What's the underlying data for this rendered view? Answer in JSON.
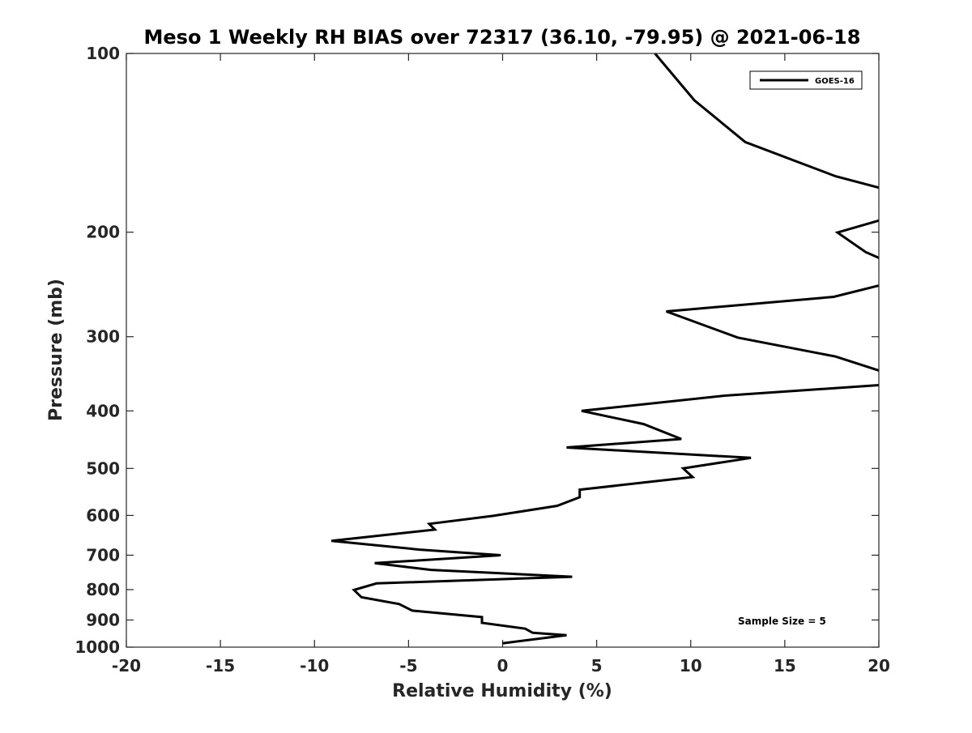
{
  "chart_data": {
    "type": "line",
    "title": "Meso 1 Weekly RH BIAS over 72317 (36.10, -79.95) @ 2021-06-18",
    "xlabel": "Relative Humidity (%)",
    "ylabel": "Pressure (mb)",
    "xlim": [
      -20,
      20
    ],
    "ylim": [
      100,
      1000
    ],
    "y_scale": "log",
    "y_reversed": true,
    "x_ticks": [
      -20,
      -15,
      -10,
      -5,
      0,
      5,
      10,
      15,
      20
    ],
    "x_tick_labels": [
      "-20",
      "-15",
      "-10",
      "-5",
      "0",
      "5",
      "10",
      "15",
      "20"
    ],
    "y_ticks": [
      100,
      200,
      300,
      400,
      500,
      600,
      700,
      800,
      900,
      1000
    ],
    "y_tick_labels": [
      "100",
      "200",
      "300",
      "400",
      "500",
      "600",
      "700",
      "800",
      "900",
      "1000"
    ],
    "grid": false,
    "legend_position": "top-right",
    "annotation": "Sample Size = 5",
    "series": [
      {
        "name": "GOES-16",
        "color": "#000000",
        "segments": [
          [
            [
              8.1,
              100
            ],
            [
              10.2,
              120
            ],
            [
              12.9,
              141
            ],
            [
              17.7,
              161
            ],
            [
              20,
              168.3
            ]
          ],
          [
            [
              20,
              191.2
            ],
            [
              17.8,
              200.3
            ],
            [
              19.3,
              216
            ],
            [
              20,
              221
            ]
          ],
          [
            [
              20,
              246
            ],
            [
              17.6,
              257
            ],
            [
              8.7,
              272
            ],
            [
              12.5,
              301
            ],
            [
              17.7,
              324
            ],
            [
              20,
              342
            ]
          ],
          [
            [
              20,
              362
            ],
            [
              11.8,
              377
            ],
            [
              4.2,
              400
            ],
            [
              7.5,
              421
            ],
            [
              9.5,
              446
            ],
            [
              3.4,
              461
            ],
            [
              13.2,
              480
            ],
            [
              9.6,
              500
            ],
            [
              10.1,
              517
            ],
            [
              4.1,
              543
            ],
            [
              4.1,
              559
            ],
            [
              2.9,
              578
            ],
            [
              -0.5,
              601
            ],
            [
              -3.9,
              620
            ],
            [
              -3.6,
              634
            ],
            [
              -9.1,
              662
            ],
            [
              -4.4,
              685
            ],
            [
              -0.1,
              700
            ],
            [
              -6.8,
              722
            ],
            [
              -3.8,
              741
            ],
            [
              3.7,
              761
            ],
            [
              -6.7,
              781
            ],
            [
              -7.9,
              801
            ],
            [
              -7.5,
              824
            ],
            [
              -5.5,
              846
            ],
            [
              -4.8,
              868
            ],
            [
              -1.1,
              890
            ],
            [
              -1.1,
              910
            ],
            [
              1.2,
              931
            ],
            [
              1.6,
              946
            ],
            [
              3.4,
              955
            ],
            [
              0,
              985
            ]
          ]
        ]
      }
    ]
  }
}
